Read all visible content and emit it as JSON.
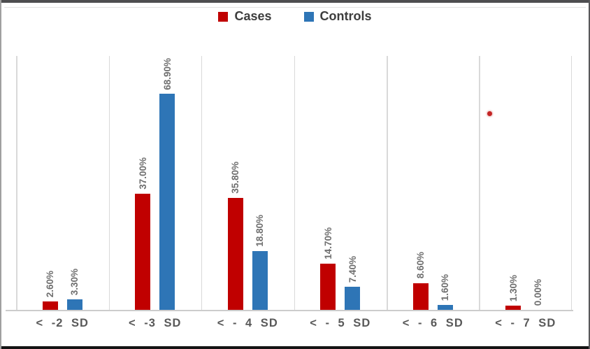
{
  "legend": {
    "items": [
      {
        "label": "Cases",
        "color": "#c00000"
      },
      {
        "label": "Controls",
        "color": "#2e75b6"
      }
    ]
  },
  "colors": {
    "cases": "#c00000",
    "controls": "#2e75b6",
    "data_label_text": "#6e6e6e",
    "category_label_text": "#595959",
    "legend_text": "#3d3d3d",
    "gridline": "#d9d9d9",
    "axis_line": "#cccccc",
    "stray_dot": "#c42525",
    "frame_top": "#4e4e50",
    "frame_bottom": "#141414"
  },
  "chart_data": {
    "type": "bar",
    "title": "",
    "categories": [
      "< -2 SD",
      "< -3 SD",
      "< - 4 SD",
      "< - 5 SD",
      "< - 6 SD",
      "< - 7 SD"
    ],
    "series": [
      {
        "name": "Cases",
        "color": "#c00000",
        "values": [
          2.6,
          37.0,
          35.8,
          14.7,
          8.6,
          1.3
        ],
        "labels": [
          "2.60%",
          "37.00%",
          "35.80%",
          "14.70%",
          "8.60%",
          "1.30%"
        ]
      },
      {
        "name": "Controls",
        "color": "#2e75b6",
        "values": [
          3.3,
          68.9,
          18.8,
          7.4,
          1.6,
          0.0
        ],
        "labels": [
          "3.30%",
          "68.90%",
          "18.80%",
          "7.40%",
          "1.60%",
          "0.00%"
        ]
      }
    ],
    "xlabel": "",
    "ylabel": "",
    "ylim": [
      0,
      81
    ],
    "y_axis_visible": false,
    "grid": "vertical category separator lines only",
    "legend_position": "top-center",
    "data_labels": "rotated 90 degrees, percent format, above bars"
  },
  "annotations": [
    {
      "type": "dot",
      "color": "#c42525"
    }
  ]
}
